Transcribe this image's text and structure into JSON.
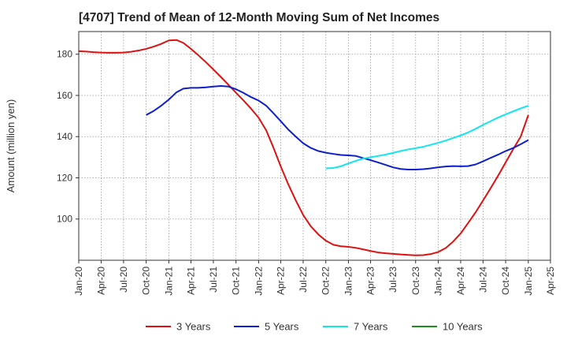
{
  "title": "[4707]  Trend of Mean of 12-Month Moving Sum of Net Incomes",
  "chart_data": {
    "type": "line",
    "title": "[4707]  Trend of Mean of 12-Month Moving Sum of Net Incomes",
    "xlabel": "",
    "ylabel": "Amount (million yen)",
    "x_ticks": [
      "Jan-20",
      "Apr-20",
      "Jul-20",
      "Oct-20",
      "Jan-21",
      "Apr-21",
      "Jul-21",
      "Oct-21",
      "Jan-22",
      "Apr-22",
      "Jul-22",
      "Oct-22",
      "Jan-23",
      "Apr-23",
      "Jul-23",
      "Oct-23",
      "Jan-24",
      "Apr-24",
      "Jul-24",
      "Oct-24",
      "Jan-25",
      "Apr-25"
    ],
    "y_ticks": [
      100,
      120,
      140,
      160,
      180
    ],
    "ylim": [
      80,
      191
    ],
    "grid": true,
    "legend_position": "bottom",
    "series": [
      {
        "name": "3 Years",
        "color": "#dd1111",
        "x": [
          "2020-01",
          "2020-02",
          "2020-03",
          "2020-04",
          "2020-05",
          "2020-06",
          "2020-07",
          "2020-08",
          "2020-09",
          "2020-10",
          "2020-11",
          "2020-12",
          "2021-01",
          "2021-02",
          "2021-03",
          "2021-04",
          "2021-05",
          "2021-06",
          "2021-07",
          "2021-08",
          "2021-09",
          "2021-10",
          "2021-11",
          "2021-12",
          "2022-01",
          "2022-02",
          "2022-03",
          "2022-04",
          "2022-05",
          "2022-06",
          "2022-07",
          "2022-08",
          "2022-09",
          "2022-10",
          "2022-11",
          "2022-12",
          "2023-01",
          "2023-02",
          "2023-03",
          "2023-04",
          "2023-05",
          "2023-06",
          "2023-07",
          "2023-08",
          "2023-09",
          "2023-10",
          "2023-11",
          "2023-12",
          "2024-01",
          "2024-02",
          "2024-03",
          "2024-04",
          "2024-05",
          "2024-06",
          "2024-07",
          "2024-08",
          "2024-09",
          "2024-10",
          "2024-11",
          "2024-12",
          "2025-01"
        ],
        "values": [
          181.5,
          181.3,
          181.0,
          180.8,
          180.7,
          180.7,
          180.8,
          181.2,
          181.8,
          182.6,
          183.7,
          185.0,
          186.7,
          186.9,
          185.5,
          182.6,
          179.5,
          176.1,
          172.6,
          168.9,
          165.1,
          161.3,
          157.5,
          153.6,
          149.2,
          143.0,
          135.0,
          125.5,
          117.0,
          109.0,
          102.0,
          96.5,
          92.5,
          89.5,
          87.5,
          86.8,
          86.5,
          86.0,
          85.3,
          84.5,
          83.8,
          83.4,
          83.1,
          82.8,
          82.6,
          82.4,
          82.5,
          83.0,
          84.0,
          86.0,
          89.0,
          93.0,
          98.0,
          103.3,
          109.0,
          115.0,
          121.2,
          127.5,
          134.0,
          140.0,
          150.5
        ]
      },
      {
        "name": "5 Years",
        "color": "#0d1fcc",
        "x": [
          "2020-10",
          "2020-11",
          "2020-12",
          "2021-01",
          "2021-02",
          "2021-03",
          "2021-04",
          "2021-05",
          "2021-06",
          "2021-07",
          "2021-08",
          "2021-09",
          "2021-10",
          "2021-11",
          "2021-12",
          "2022-01",
          "2022-02",
          "2022-03",
          "2022-04",
          "2022-05",
          "2022-06",
          "2022-07",
          "2022-08",
          "2022-09",
          "2022-10",
          "2022-11",
          "2022-12",
          "2023-01",
          "2023-02",
          "2023-03",
          "2023-04",
          "2023-05",
          "2023-06",
          "2023-07",
          "2023-08",
          "2023-09",
          "2023-10",
          "2023-11",
          "2023-12",
          "2024-01",
          "2024-02",
          "2024-03",
          "2024-04",
          "2024-05",
          "2024-06",
          "2024-07",
          "2024-08",
          "2024-09",
          "2024-10",
          "2024-11",
          "2024-12",
          "2025-01"
        ],
        "values": [
          150.5,
          152.5,
          155.0,
          158.0,
          161.5,
          163.3,
          163.7,
          163.7,
          163.9,
          164.3,
          164.6,
          164.3,
          163.0,
          161.2,
          159.2,
          157.5,
          155.0,
          151.5,
          147.5,
          143.5,
          140.0,
          136.8,
          134.5,
          133.0,
          132.2,
          131.6,
          131.1,
          130.9,
          130.6,
          129.6,
          128.6,
          127.5,
          126.3,
          125.1,
          124.3,
          124.0,
          124.0,
          124.2,
          124.6,
          125.1,
          125.5,
          125.7,
          125.6,
          125.7,
          126.5,
          128.0,
          129.7,
          131.3,
          133.0,
          134.5,
          136.3,
          138.3
        ]
      },
      {
        "name": "7 Years",
        "color": "#11e5ee",
        "x": [
          "2022-10",
          "2022-11",
          "2022-12",
          "2023-01",
          "2023-02",
          "2023-03",
          "2023-04",
          "2023-05",
          "2023-06",
          "2023-07",
          "2023-08",
          "2023-09",
          "2023-10",
          "2023-11",
          "2023-12",
          "2024-01",
          "2024-02",
          "2024-03",
          "2024-04",
          "2024-05",
          "2024-06",
          "2024-07",
          "2024-08",
          "2024-09",
          "2024-10",
          "2024-11",
          "2024-12",
          "2025-01"
        ],
        "values": [
          124.6,
          124.8,
          125.6,
          127.0,
          128.3,
          129.3,
          130.0,
          130.6,
          131.3,
          132.1,
          133.0,
          133.8,
          134.4,
          135.1,
          136.0,
          137.0,
          138.1,
          139.3,
          140.6,
          142.0,
          143.8,
          145.7,
          147.5,
          149.3,
          150.8,
          152.3,
          153.7,
          155.0
        ]
      },
      {
        "name": "10 Years",
        "color": "#1e8f1e",
        "x": [],
        "values": []
      }
    ]
  }
}
